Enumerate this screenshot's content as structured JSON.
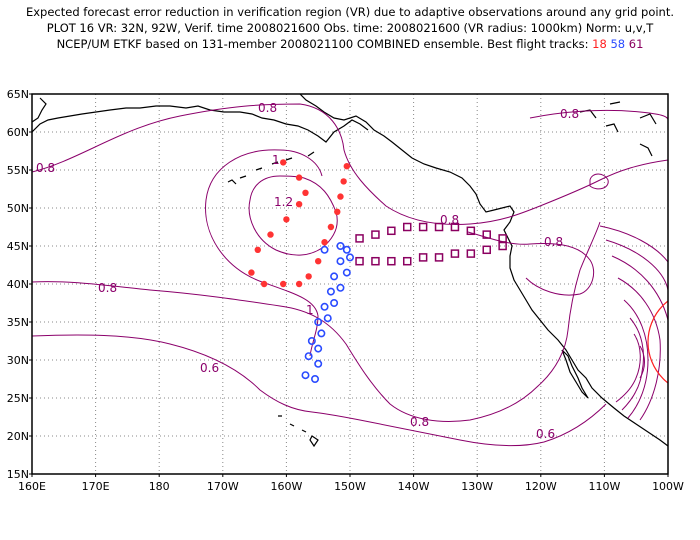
{
  "header": {
    "line1": "Expected forecast error reduction in verification region (VR) due to adaptive observations around any grid point.",
    "line2": "PLOT 16 VR: 32N, 92W, Verif. time 2008021600 Obs. time: 2008021600 (VR radius: 1000km) Norm: u,v,T",
    "line3_prefix": "NCEP/UM ETKF based on 131-member 2008021100 COMBINED ensemble.  Best flight tracks: ",
    "track1": "18",
    "track2": "58",
    "track3": "61"
  },
  "axes": {
    "lat_ticks": [
      "65N",
      "60N",
      "55N",
      "50N",
      "45N",
      "40N",
      "35N",
      "30N",
      "25N",
      "20N",
      "15N"
    ],
    "lon_ticks": [
      "160E",
      "170E",
      "180",
      "170W",
      "160W",
      "150W",
      "140W",
      "130W",
      "120W",
      "110W",
      "100W"
    ]
  },
  "contour_labels": [
    "0.8",
    "0.8",
    "0.8",
    "1",
    "1.2",
    "0.8",
    "0.8",
    "0.8",
    "1",
    "0.6",
    "0.8",
    "0.6"
  ],
  "colors": {
    "contour": "#8b006b",
    "track_18": "#ff3333",
    "track_58": "#2a4bff",
    "track_61": "#8b0060",
    "vr_circle": "#ff2020"
  },
  "tracks": {
    "track_18": [
      [
        -160.5,
        56
      ],
      [
        -158,
        54
      ],
      [
        -157,
        52
      ],
      [
        -158,
        50.5
      ],
      [
        -160,
        48.5
      ],
      [
        -162.5,
        46.5
      ],
      [
        -164.5,
        44.5
      ],
      [
        -165.5,
        41.5
      ],
      [
        -163.5,
        40
      ],
      [
        -160.5,
        40
      ],
      [
        -158,
        40
      ],
      [
        -156.5,
        41
      ],
      [
        -155,
        43
      ],
      [
        -154,
        45.5
      ],
      [
        -153,
        47.5
      ],
      [
        -152,
        49.5
      ],
      [
        -151.5,
        51.5
      ],
      [
        -151,
        53.5
      ],
      [
        -150.5,
        55.5
      ]
    ],
    "track_58": [
      [
        -150.5,
        44.5
      ],
      [
        -151.5,
        43
      ],
      [
        -152.5,
        41
      ],
      [
        -153,
        39
      ],
      [
        -154,
        37
      ],
      [
        -155,
        35
      ],
      [
        -156,
        32.5
      ],
      [
        -156.5,
        30.5
      ],
      [
        -157,
        28
      ],
      [
        -155.5,
        27.5
      ],
      [
        -155,
        29.5
      ],
      [
        -155,
        31.5
      ],
      [
        -154.5,
        33.5
      ],
      [
        -153.5,
        35.5
      ],
      [
        -152.5,
        37.5
      ],
      [
        -151.5,
        39.5
      ],
      [
        -150.5,
        41.5
      ],
      [
        -150,
        43.5
      ],
      [
        -151.5,
        45
      ],
      [
        -154,
        44.5
      ]
    ],
    "track_61": [
      [
        -148.5,
        46
      ],
      [
        -146,
        46.5
      ],
      [
        -143.5,
        47
      ],
      [
        -141,
        47.5
      ],
      [
        -138.5,
        47.5
      ],
      [
        -136,
        47.5
      ],
      [
        -133.5,
        47.5
      ],
      [
        -131,
        47
      ],
      [
        -128.5,
        46.5
      ],
      [
        -126,
        46
      ],
      [
        -126,
        45
      ],
      [
        -128.5,
        44.5
      ],
      [
        -131,
        44
      ],
      [
        -133.5,
        44
      ],
      [
        -136,
        43.5
      ],
      [
        -138.5,
        43.5
      ],
      [
        -141,
        43
      ],
      [
        -143.5,
        43
      ],
      [
        -146,
        43
      ],
      [
        -148.5,
        43
      ]
    ]
  }
}
